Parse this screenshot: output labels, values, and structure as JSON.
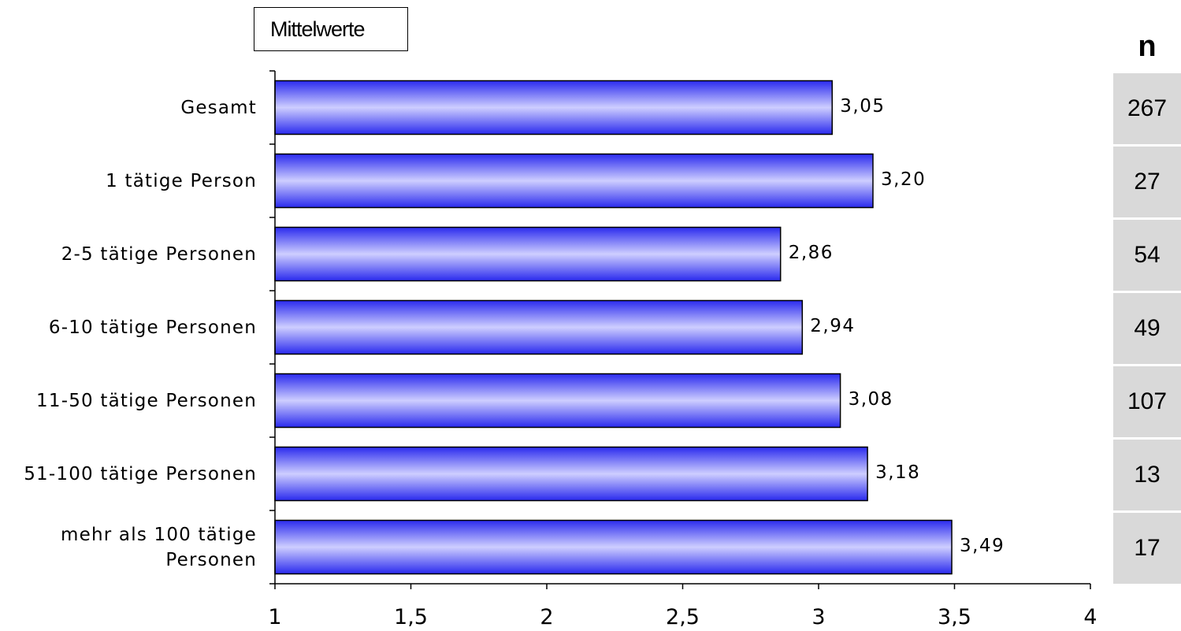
{
  "legend": {
    "label": "Mittelwerte"
  },
  "n_column": {
    "header": "n",
    "values": [
      "267",
      "27",
      "54",
      "49",
      "107",
      "13",
      "17"
    ]
  },
  "chart_data": {
    "type": "bar",
    "orientation": "horizontal",
    "categories": [
      "Gesamt",
      "1 tätige Person",
      "2-5 tätige Personen",
      "6-10 tätige Personen",
      "11-50 tätige Personen",
      "51-100 tätige Personen",
      "mehr als 100 tätige Personen"
    ],
    "values": [
      3.05,
      3.2,
      2.86,
      2.94,
      3.08,
      3.18,
      3.49
    ],
    "value_labels": [
      "3,05",
      "3,20",
      "2,86",
      "2,94",
      "3,08",
      "3,18",
      "3,49"
    ],
    "xlim": [
      1,
      4
    ],
    "xticks": [
      1,
      1.5,
      2,
      2.5,
      3,
      3.5,
      4
    ],
    "xtick_labels": [
      "1",
      "1,5",
      "2",
      "2,5",
      "3",
      "3,5",
      "4"
    ],
    "grid": false,
    "legend_label": "Mittelwerte",
    "legend_position": "top-left",
    "bar_color": "#3333ee"
  }
}
